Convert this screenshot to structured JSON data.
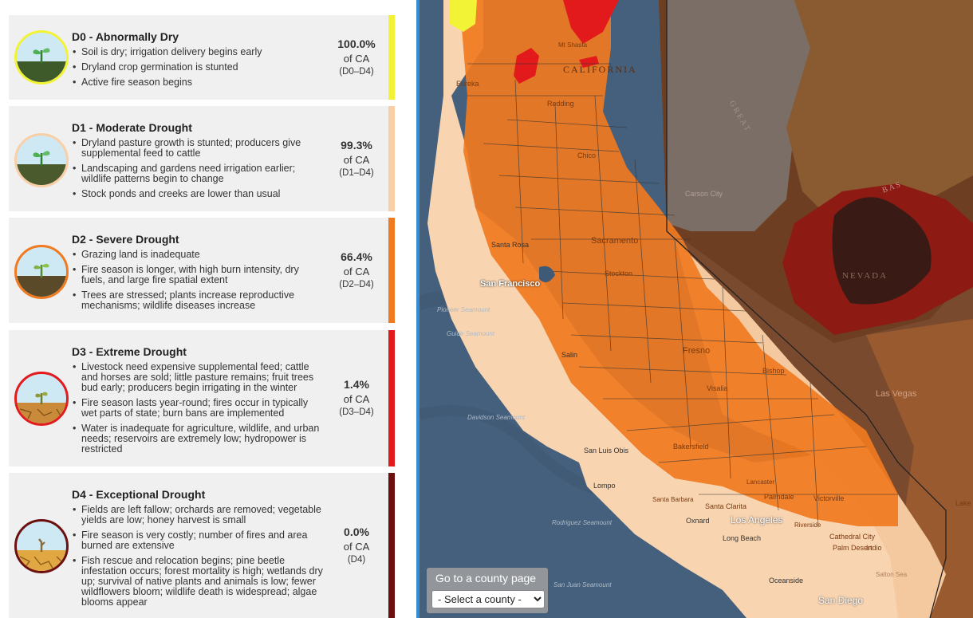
{
  "categories": [
    {
      "title": "D0 - Abnormally Dry",
      "impacts": [
        "Soil is dry; irrigation delivery begins early",
        "Dryland crop germination is stunted",
        "Active fire season begins"
      ],
      "percent": "100.0%",
      "of_label": "of CA",
      "range": "(D0–D4)",
      "color": "#f2f236"
    },
    {
      "title": "D1 - Moderate Drought",
      "impacts": [
        "Dryland pasture growth is stunted; producers give supplemental feed to cattle",
        "Landscaping and gardens need irrigation earlier; wildlife patterns begin to change",
        "Stock ponds and creeks are lower than usual"
      ],
      "percent": "99.3%",
      "of_label": "of CA",
      "range": "(D1–D4)",
      "color": "#f8cfa6"
    },
    {
      "title": "D2 - Severe Drought",
      "impacts": [
        "Grazing land is inadequate",
        "Fire season is longer, with high burn intensity, dry fuels, and large fire spatial extent",
        "Trees are stressed; plants increase reproductive mechanisms; wildlife diseases increase"
      ],
      "percent": "66.4%",
      "of_label": "of CA",
      "range": "(D2–D4)",
      "color": "#f07a1f"
    },
    {
      "title": "D3 - Extreme Drought",
      "impacts": [
        "Livestock need expensive supplemental feed; cattle and horses are sold; little pasture remains; fruit trees bud early; producers begin irrigating in the winter",
        "Fire season lasts year-round; fires occur in typically wet parts of state; burn bans are implemented",
        "Water is inadequate for agriculture, wildlife, and urban needs; reservoirs are extremely low; hydropower is restricted"
      ],
      "percent": "1.4%",
      "of_label": "of CA",
      "range": "(D3–D4)",
      "color": "#e31a1c"
    },
    {
      "title": "D4 - Exceptional Drought",
      "impacts": [
        "Fields are left fallow; orchards are removed; vegetable yields are low; honey harvest is small",
        "Fire season is very costly; number of fires and area burned are extensive",
        "Fish rescue and relocation begins; pine beetle infestation occurs; forest mortality is high; wetlands dry up; survival of native plants and animals is low; fewer wildflowers bloom; wildlife death is widespread; algae blooms appear"
      ],
      "percent": "0.0%",
      "of_label": "of CA",
      "range": "(D4)",
      "color": "#6b0f0f"
    }
  ],
  "map": {
    "labels": {
      "california": "CALIFORNIA",
      "nevada": "NEVADA",
      "san_francisco": "San Francisco",
      "sacramento": "Sacramento",
      "fresno": "Fresno",
      "los_angeles": "Los Angeles",
      "san_diego": "San Diego",
      "las_vegas": "Las Vegas",
      "redding": "Redding",
      "chico": "Chico",
      "carson_city": "Carson City",
      "stockton": "Stockton",
      "visalia": "Visalia",
      "bakersfield": "Bakersfield",
      "san_luis_obispo": "San Luis Obis",
      "lompoc": "Lompo",
      "oxnard": "Oxnard",
      "long_beach": "Long Beach",
      "oceanside": "Oceanside",
      "victorville": "Victorville",
      "palmdale": "Palmdale",
      "santa_clarita": "Santa Clarita",
      "eureka": "Eureka",
      "santa_rosa": "Santa Rosa",
      "salinas": "Salin",
      "pioneer_seamount": "Pioneer Seamount",
      "guide_seamount": "Guide Seamount",
      "davidson_seamount": "Davidson Seamount",
      "rodriguez_seamount": "Rodriguez Seamount",
      "san_juan_seamount": "San Juan Seamount",
      "cathedral_city": "Cathedral City",
      "palm_desert": "Palm Desert",
      "indio": "Indio",
      "lake": "Lake",
      "bishop": "Bishop",
      "mt_shasta": "Mt Shasta",
      "great_basin": "G R E A T",
      "basin": "B A S",
      "salton": "Salton Sea",
      "riverside": "Riverside",
      "santa_barbara": "Santa Barbara",
      "lancaster": "Lancaster"
    }
  },
  "county_picker": {
    "label": "Go to a county page",
    "selected": "- Select a county -"
  }
}
